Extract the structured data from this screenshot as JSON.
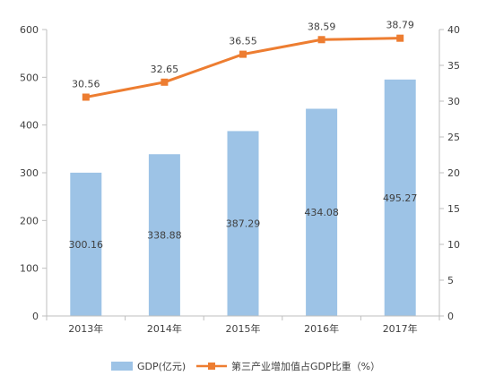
{
  "chart_data": {
    "type": "bar+line",
    "categories": [
      "2013年",
      "2014年",
      "2015年",
      "2016年",
      "2017年"
    ],
    "series": [
      {
        "name": "GDP(亿元)",
        "type": "bar",
        "axis": "left",
        "values": [
          300.16,
          338.88,
          387.29,
          434.08,
          495.27
        ],
        "labels": [
          "300.16",
          "338.88",
          "387.29",
          "434.08",
          "495.27"
        ],
        "color": "#9dc3e6"
      },
      {
        "name": "第三产业增加值占GDP比重（%）",
        "type": "line",
        "axis": "right",
        "values": [
          30.56,
          32.65,
          36.55,
          38.59,
          38.79
        ],
        "labels": [
          "30.56",
          "32.65",
          "36.55",
          "38.59",
          "38.79"
        ],
        "color": "#ed7d31"
      }
    ],
    "y_left": {
      "min": 0,
      "max": 600,
      "ticks": [
        "0",
        "100",
        "200",
        "300",
        "400",
        "500",
        "600"
      ]
    },
    "y_right": {
      "min": 0,
      "max": 40,
      "ticks": [
        "0",
        "5",
        "10",
        "15",
        "20",
        "25",
        "30",
        "35",
        "40"
      ]
    },
    "grid": false,
    "legend_position": "bottom"
  },
  "colors": {
    "axis": "#bfbfbf",
    "text": "#404040"
  }
}
